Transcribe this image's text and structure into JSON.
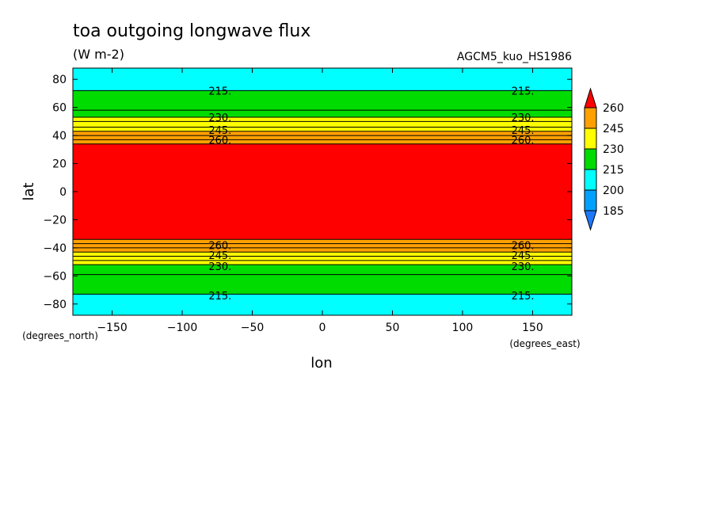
{
  "chart_data": {
    "type": "heatmap",
    "title": "toa outgoing longwave flux",
    "subtitle": "(W m-2)",
    "model_label": "AGCM5_kuo_HS1986",
    "xlabel": "lon",
    "ylabel": "lat",
    "x_unit": "(degrees_east)",
    "y_unit": "(degrees_north)",
    "xlim": [
      -178,
      178
    ],
    "ylim": [
      -88,
      88
    ],
    "x_ticks": [
      -150,
      -100,
      -50,
      0,
      50,
      100,
      150
    ],
    "y_ticks": [
      80,
      60,
      40,
      20,
      0,
      -20,
      -40,
      -60,
      -80
    ],
    "colorbar": {
      "levels": [
        185,
        200,
        215,
        230,
        245,
        260
      ],
      "colors": [
        "#1e78ff",
        "#00a0ff",
        "#00ffff",
        "#00dc00",
        "#ffff00",
        "#ffa000",
        "#ff0000"
      ],
      "labels": [
        "260",
        "245",
        "230",
        "215",
        "200",
        "185"
      ]
    },
    "bands": [
      {
        "lat_min": 72,
        "lat_max": 88,
        "color": "#00ffff"
      },
      {
        "lat_min": 58,
        "lat_max": 72,
        "color": "#00dc00"
      },
      {
        "lat_min": 53,
        "lat_max": 58,
        "color": "#00dc00"
      },
      {
        "lat_min": 50,
        "lat_max": 53,
        "color": "#ffff00"
      },
      {
        "lat_min": 46,
        "lat_max": 50,
        "color": "#ffff00"
      },
      {
        "lat_min": 43,
        "lat_max": 46,
        "color": "#ffff00"
      },
      {
        "lat_min": 40,
        "lat_max": 43,
        "color": "#ffa000"
      },
      {
        "lat_min": 37,
        "lat_max": 40,
        "color": "#ffa000"
      },
      {
        "lat_min": 34,
        "lat_max": 37,
        "color": "#ffa000"
      },
      {
        "lat_min": -34,
        "lat_max": 34,
        "color": "#ff0000"
      },
      {
        "lat_min": -37,
        "lat_max": -34,
        "color": "#ffa000"
      },
      {
        "lat_min": -40,
        "lat_max": -37,
        "color": "#ffa000"
      },
      {
        "lat_min": -43,
        "lat_max": -40,
        "color": "#ffa000"
      },
      {
        "lat_min": -46,
        "lat_max": -43,
        "color": "#ffff00"
      },
      {
        "lat_min": -49,
        "lat_max": -46,
        "color": "#ffff00"
      },
      {
        "lat_min": -52,
        "lat_max": -49,
        "color": "#ffff00"
      },
      {
        "lat_min": -59,
        "lat_max": -52,
        "color": "#00dc00"
      },
      {
        "lat_min": -73,
        "lat_max": -59,
        "color": "#00dc00"
      },
      {
        "lat_min": -88,
        "lat_max": -73,
        "color": "#00ffff"
      }
    ],
    "contour_lines_lat": [
      72,
      58,
      53,
      50,
      46,
      43,
      40,
      37,
      34,
      -34,
      -37,
      -40,
      -43,
      -46,
      -49,
      -52,
      -59,
      -73
    ],
    "contour_labels": [
      {
        "text": "215.",
        "lat": 72,
        "lons": [
          -73,
          143
        ]
      },
      {
        "text": "230.",
        "lat": 53,
        "lons": [
          -73,
          143
        ]
      },
      {
        "text": "245.",
        "lat": 44,
        "lons": [
          -73,
          143
        ]
      },
      {
        "text": "260.",
        "lat": 37,
        "lons": [
          -73,
          143
        ]
      },
      {
        "text": "260.",
        "lat": -38,
        "lons": [
          -73,
          143
        ]
      },
      {
        "text": "245.",
        "lat": -45,
        "lons": [
          -73,
          143
        ]
      },
      {
        "text": "230.",
        "lat": -53,
        "lons": [
          -73,
          143
        ]
      },
      {
        "text": "215.",
        "lat": -74,
        "lons": [
          -73,
          143
        ]
      }
    ]
  }
}
